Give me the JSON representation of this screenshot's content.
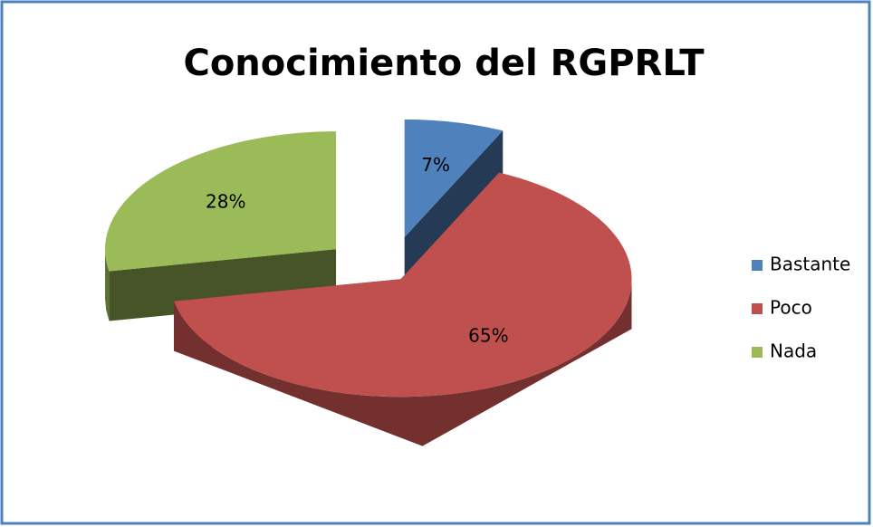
{
  "chart_data": {
    "type": "pie",
    "title": "Conocimiento del RGPRLT",
    "categories": [
      "Bastante",
      "Poco",
      "Nada"
    ],
    "values": [
      7,
      65,
      28
    ],
    "value_labels": [
      "7%",
      "65%",
      "28%"
    ],
    "colors": [
      "#4f81bd",
      "#c0504d",
      "#9bbb59"
    ],
    "legend": "right"
  }
}
